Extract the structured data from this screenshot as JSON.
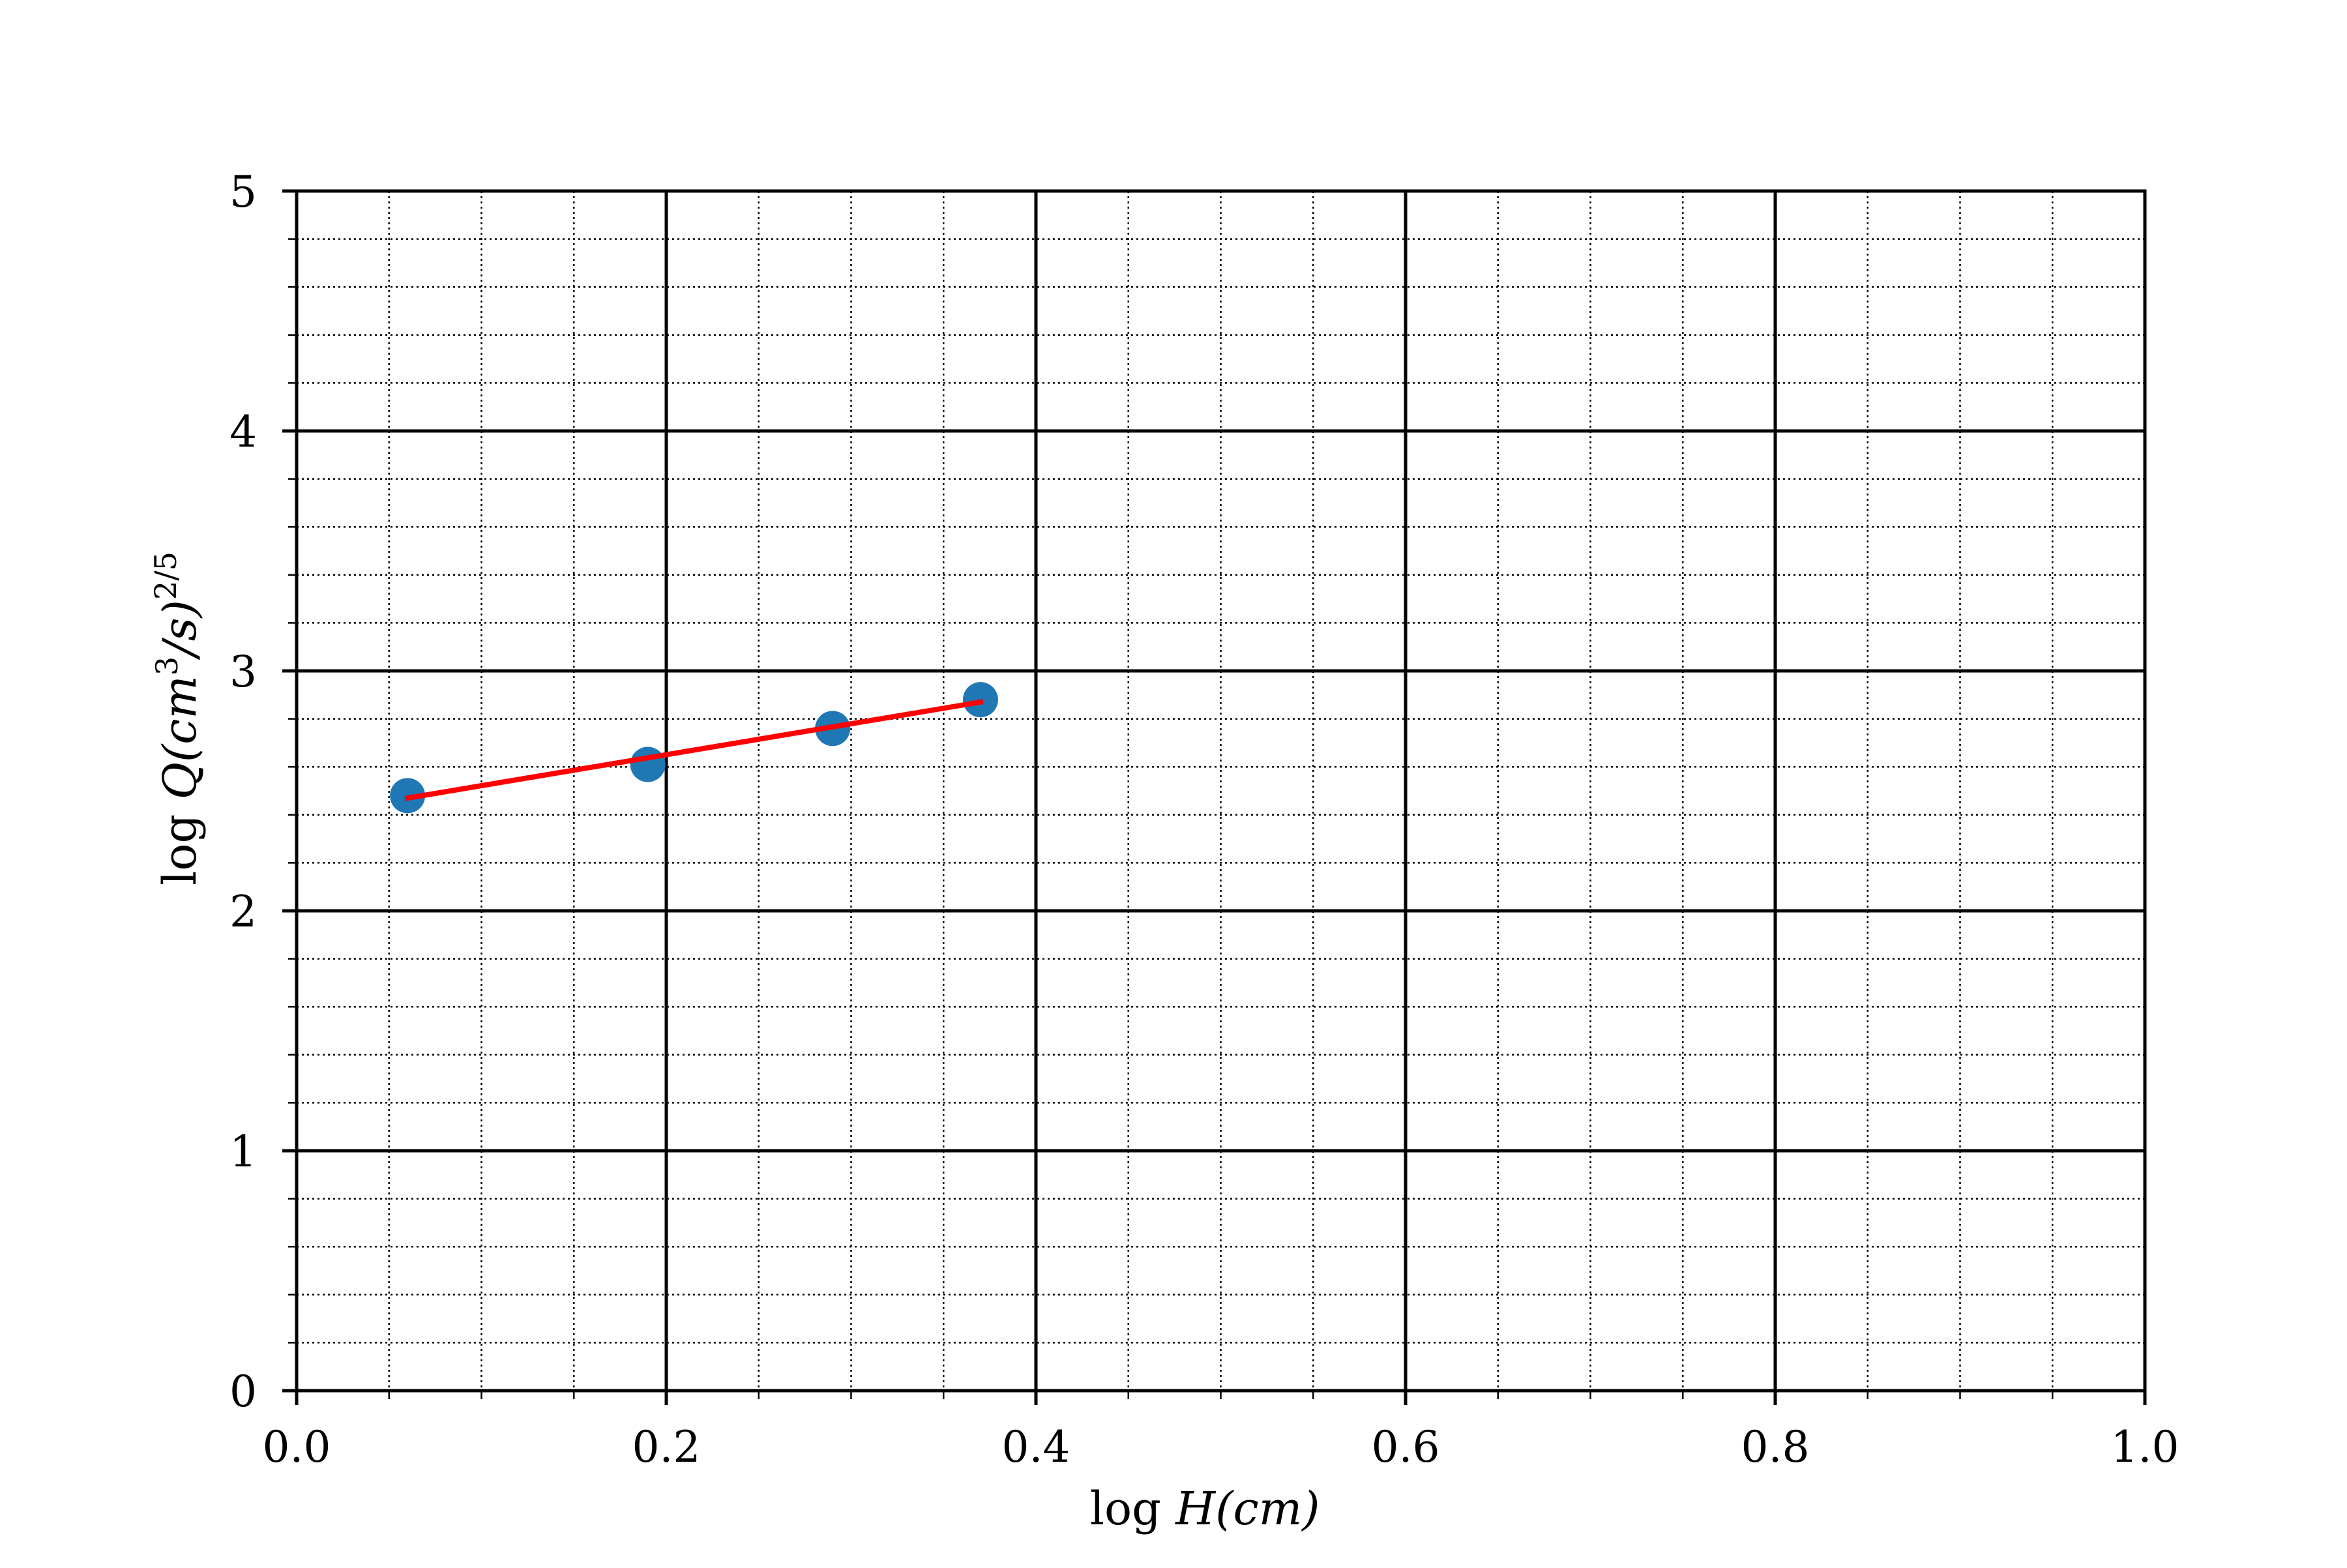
{
  "chart_data": {
    "type": "scatter",
    "xlim": [
      0.0,
      1.0
    ],
    "ylim": [
      0,
      5
    ],
    "x_ticks": [
      0.0,
      0.2,
      0.4,
      0.6,
      0.8,
      1.0
    ],
    "x_tick_labels": [
      "0.0",
      "0.2",
      "0.4",
      "0.6",
      "0.8",
      "1.0"
    ],
    "y_ticks": [
      0,
      1,
      2,
      3,
      4,
      5
    ],
    "y_tick_labels": [
      "0",
      "1",
      "2",
      "3",
      "4",
      "5"
    ],
    "x_minor_step": 0.05,
    "y_minor_step": 0.2,
    "grid": {
      "major": true,
      "minor": true,
      "major_style": "solid",
      "minor_style": "dotted"
    },
    "xlabel": {
      "prefix": "log",
      "var": "H",
      "unit": "(cm)"
    },
    "ylabel": {
      "prefix": "log",
      "var": "Q",
      "unit_open": "(cm",
      "unit_sup": "3",
      "unit_close": "/s)",
      "exponent": "2/5"
    },
    "series": [
      {
        "type": "scatter",
        "color": "#1f77b4",
        "points": [
          {
            "x": 0.06,
            "y": 2.48
          },
          {
            "x": 0.19,
            "y": 2.61
          },
          {
            "x": 0.29,
            "y": 2.76
          },
          {
            "x": 0.37,
            "y": 2.88
          }
        ]
      },
      {
        "type": "line",
        "color": "#ff0000",
        "points": [
          {
            "x": 0.06,
            "y": 2.47
          },
          {
            "x": 0.37,
            "y": 2.87
          }
        ]
      }
    ]
  }
}
